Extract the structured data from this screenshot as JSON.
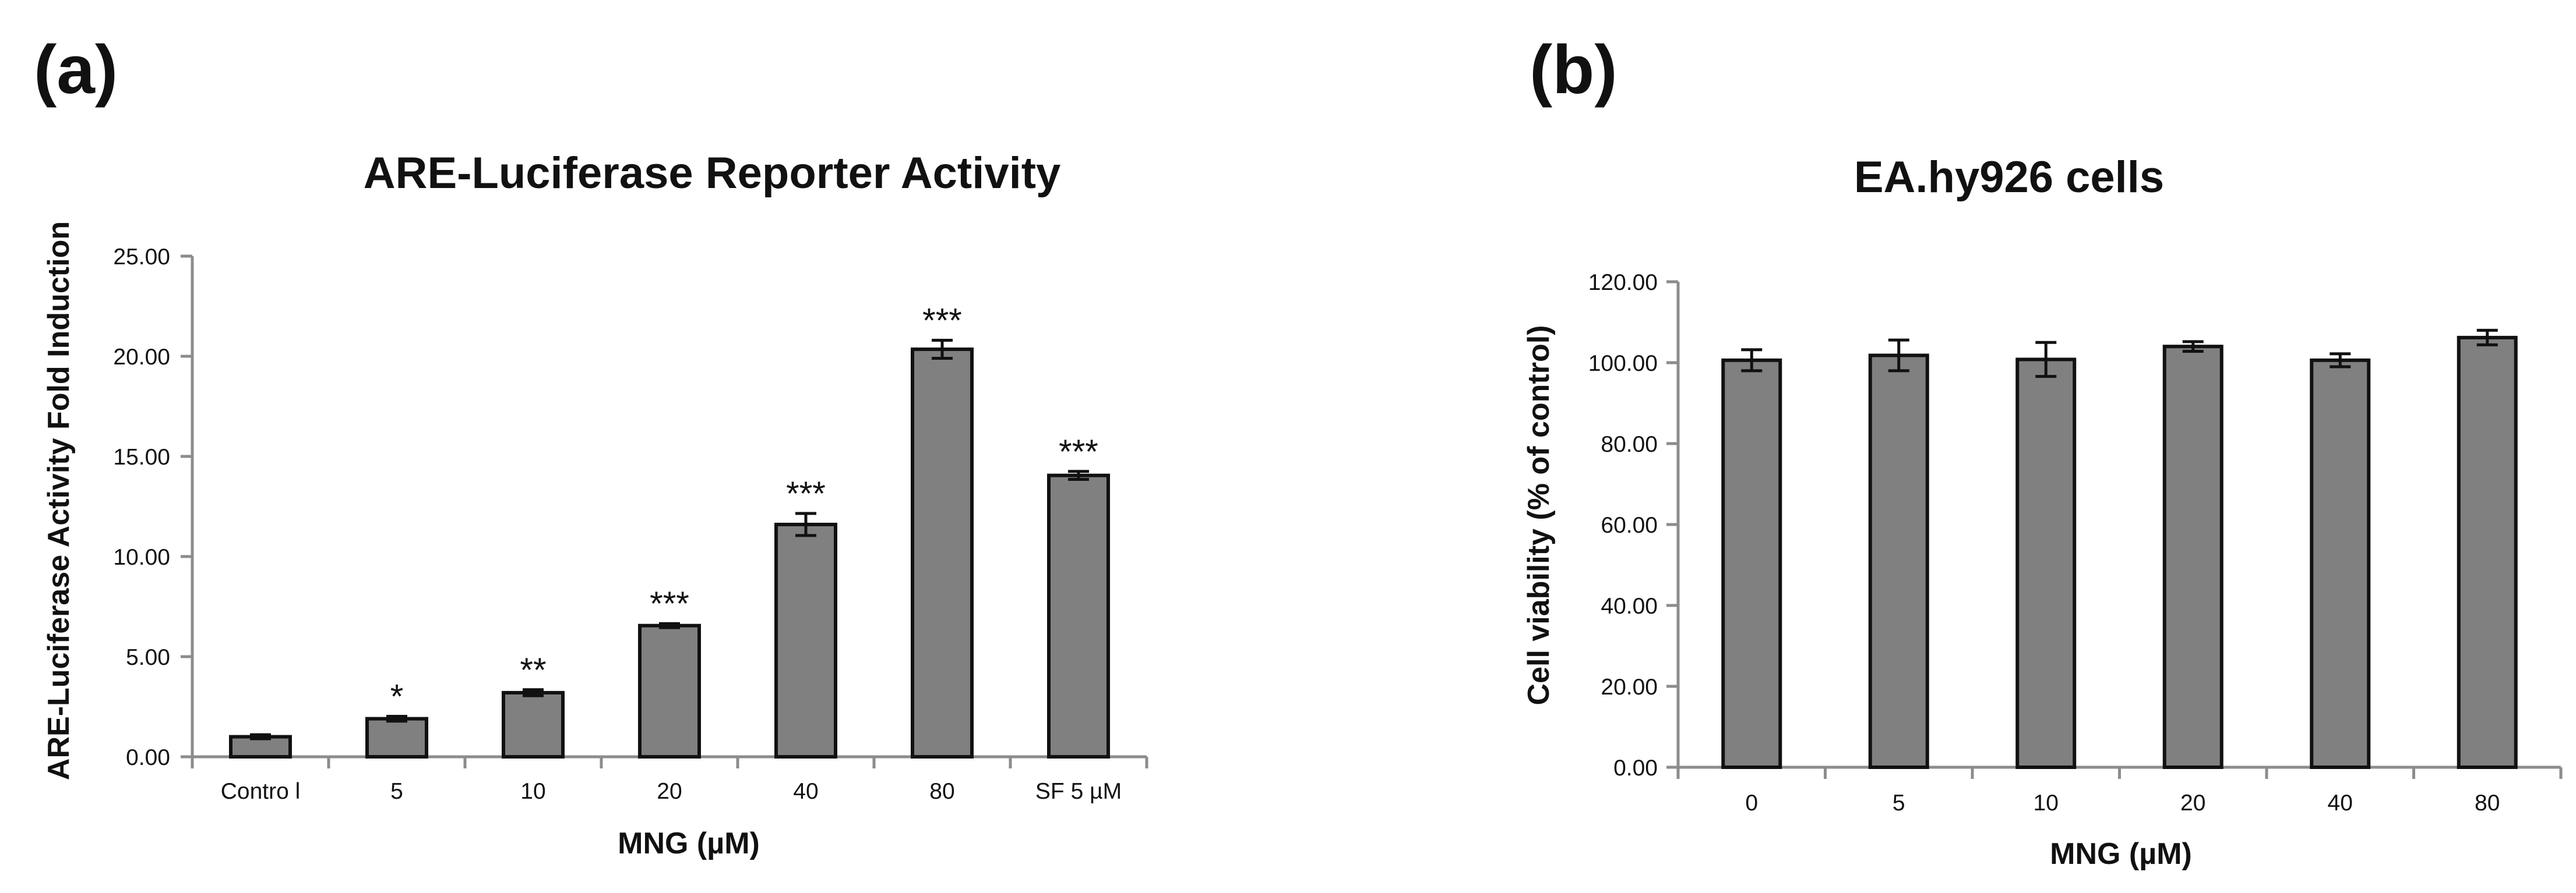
{
  "colors": {
    "bar_fill": "#808080",
    "bar_edge": "#111111",
    "axis": "#8c8c8c",
    "text": "#111111"
  },
  "chart_data": [
    {
      "panel": "(a)",
      "type": "bar",
      "title": "ARE-Luciferase Reporter Activity",
      "xlabel": "MNG (µM)",
      "ylabel": "ARE-Luciferase Activity Fold Induction",
      "ylim": [
        0,
        25
      ],
      "yticks": [
        "0.00",
        "5.00",
        "10.00",
        "15.00",
        "20.00",
        "25.00"
      ],
      "categories": [
        "Contro l",
        "5",
        "10",
        "20",
        "40",
        "80",
        "SF 5 µM"
      ],
      "values": [
        1.0,
        1.9,
        3.2,
        6.55,
        11.6,
        20.35,
        14.05
      ],
      "errors": [
        0.1,
        0.12,
        0.15,
        0.1,
        0.55,
        0.45,
        0.2
      ],
      "annotations": [
        "",
        "*",
        "**",
        "***",
        "***",
        "***",
        "***"
      ]
    },
    {
      "panel": "(b)",
      "type": "bar",
      "title": "EA.hy926 cells",
      "xlabel": "MNG (µM)",
      "ylabel": "Cell viability (% of control)",
      "ylim": [
        0,
        120
      ],
      "yticks": [
        "0.00",
        "20.00",
        "40.00",
        "60.00",
        "80.00",
        "100.00",
        "120.00"
      ],
      "categories": [
        "0",
        "5",
        "10",
        "20",
        "40",
        "80"
      ],
      "values": [
        100.6,
        101.8,
        100.8,
        104.0,
        100.6,
        106.2
      ],
      "errors": [
        2.6,
        3.8,
        4.2,
        1.2,
        1.6,
        1.8
      ],
      "annotations": [
        "",
        "",
        "",
        "",
        "",
        ""
      ]
    }
  ]
}
